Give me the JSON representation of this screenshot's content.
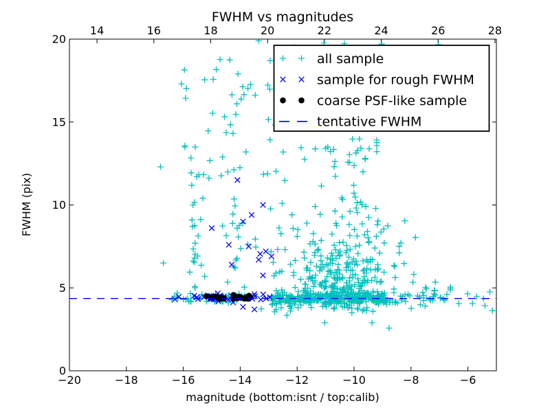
{
  "chart_data": {
    "type": "scatter",
    "title": "FWHM vs magnitudes",
    "xlabel": "magnitude (bottom:isnt / top:calib)",
    "ylabel": "FWHM (pix)",
    "axes": {
      "x_min": -20,
      "x_max": -5,
      "x_top_min": 13.03,
      "x_top_max": 28.05,
      "y_min": 0,
      "y_max": 20,
      "grid": false
    },
    "x_ticks_bottom": {
      "values": [
        -20,
        -18,
        -16,
        -14,
        -12,
        -10,
        -8,
        -6
      ],
      "labels": [
        "−20",
        "−18",
        "−16",
        "−14",
        "−12",
        "−10",
        "−8",
        "−6"
      ]
    },
    "x_ticks_top": {
      "values": [
        14,
        16,
        18,
        20,
        22,
        24,
        26,
        28
      ],
      "labels": [
        "14",
        "16",
        "18",
        "20",
        "22",
        "24",
        "26",
        "28"
      ]
    },
    "y_ticks": {
      "values": [
        0,
        5,
        10,
        15,
        20
      ],
      "labels": [
        "0",
        "5",
        "10",
        "15",
        "20"
      ]
    },
    "colors": {
      "all_sample": "#00bfbf",
      "rough_fwhm": "#0000ff",
      "psf_like": "#000000",
      "tentative_line": "#0000ff",
      "axis": "#000000"
    },
    "tentative_fwhm": 4.36,
    "legend": {
      "position": "upper right",
      "items": [
        {
          "label": "all sample",
          "marker": "plus",
          "color": "#00bfbf"
        },
        {
          "label": "sample for rough FWHM",
          "marker": "x",
          "color": "#0000ff"
        },
        {
          "label": "coarse PSF-like sample",
          "marker": "dot",
          "color": "#000000"
        },
        {
          "label": "tentative FWHM",
          "marker": "dash",
          "color": "#0000ff"
        }
      ]
    },
    "series": [
      {
        "name": "all sample",
        "marker": "plus",
        "color": "#00bfbf",
        "points": [
          [
            -16.8,
            12.3
          ],
          [
            -16.7,
            6.5
          ],
          [
            -13.35,
            19.9
          ],
          [
            -12.95,
            18.7
          ],
          [
            -12.1,
            19.5
          ],
          [
            -11.06,
            19.77
          ],
          [
            -10.34,
            19.73
          ],
          [
            -9.03,
            19.7
          ],
          [
            -7.03,
            19.66
          ],
          [
            -13.26,
            3.73
          ],
          [
            -12.36,
            3.35
          ],
          [
            -11.03,
            2.9
          ],
          [
            -9.37,
            2.9
          ],
          [
            -8.77,
            2.57
          ],
          [
            -7.46,
            4.39
          ],
          [
            -6.61,
            5.05
          ],
          [
            -6.32,
            4.06
          ],
          [
            -6.01,
            4.64
          ],
          [
            -5.84,
            4.06
          ],
          [
            -5.69,
            4.47
          ],
          [
            -5.45,
            4.35
          ],
          [
            -5.4,
            3.93
          ],
          [
            -5.23,
            4.76
          ],
          [
            -5.14,
            3.64
          ],
          [
            -16.3,
            4.5
          ],
          [
            -16.4,
            4.3
          ]
        ],
        "clusters": [
          {
            "n": 55,
            "x": [
              "u",
              -16.25,
              -13.35
            ],
            "y": [
              "n",
              4.38,
              0.13
            ]
          },
          {
            "n": 300,
            "x": [
              "u",
              -12.9,
              -8.85
            ],
            "y": [
              "n",
              4.38,
              0.16
            ]
          },
          {
            "n": 55,
            "x": [
              "u",
              -12.85,
              -8.7
            ],
            "y": [
              "n",
              4.02,
              0.27
            ]
          },
          {
            "n": 40,
            "x": [
              "u",
              -8.85,
              -6.6
            ],
            "y": [
              "n",
              4.4,
              0.33
            ]
          },
          {
            "n": 260,
            "x": [
              "n",
              -10.55,
              0.85,
              -12.75,
              -8.6
            ],
            "y": [
              "e",
              4.55,
              2.0,
              14.2
            ]
          },
          {
            "n": 26,
            "x": [
              "n",
              -10.2,
              0.55,
              -11.6,
              -9.2
            ],
            "y": [
              "u",
              9.5,
              14.3
            ]
          },
          {
            "n": 26,
            "x": [
              "n",
              -15.5,
              0.14
            ],
            "y": [
              "u",
              4.7,
              12.3
            ]
          },
          {
            "n": 20,
            "x": [
              "u",
              -14.65,
              -13.4
            ],
            "y": [
              "u",
              5.0,
              10.8
            ]
          },
          {
            "n": 14,
            "x": [
              "n",
              -12.75,
              0.18
            ],
            "y": [
              "u",
              5.5,
              12.5
            ]
          },
          {
            "n": 40,
            "x": [
              "u",
              -16.1,
              -13.0
            ],
            "y": [
              "u",
              11.5,
              19.3
            ]
          },
          {
            "n": 12,
            "x": [
              "u",
              -13.0,
              -11.3
            ],
            "y": [
              "u",
              12.5,
              19.6
            ]
          },
          {
            "n": 13,
            "x": [
              "u",
              -9.3,
              -7.6
            ],
            "y": [
              "u",
              4.9,
              9.6
            ]
          }
        ]
      },
      {
        "name": "sample for rough FWHM",
        "marker": "x",
        "color": "#0000ff",
        "points": [
          [
            -14.1,
            11.5
          ],
          [
            -13.2,
            10.0
          ],
          [
            -13.6,
            9.4
          ],
          [
            -13.9,
            9.0
          ],
          [
            -15.0,
            8.6
          ],
          [
            -14.4,
            7.6
          ],
          [
            -13.7,
            7.5
          ],
          [
            -13.1,
            7.2
          ],
          [
            -13.3,
            7.05
          ],
          [
            -13.35,
            6.7
          ],
          [
            -14.3,
            6.4
          ],
          [
            -13.2,
            5.75
          ],
          [
            -12.9,
            6.9
          ],
          [
            -13.9,
            3.85
          ],
          [
            -13.5,
            3.7
          ]
        ],
        "clusters": [
          {
            "n": 32,
            "x": [
              "u",
              -16.3,
              -12.8
            ],
            "y": [
              "n",
              4.42,
              0.15
            ]
          }
        ]
      },
      {
        "name": "coarse PSF-like sample",
        "marker": "dot",
        "color": "#000000",
        "points": [],
        "clusters": [
          {
            "n": 26,
            "x": [
              "u",
              -15.2,
              -13.5
            ],
            "y": [
              "n",
              4.42,
              0.05
            ]
          }
        ]
      }
    ]
  }
}
